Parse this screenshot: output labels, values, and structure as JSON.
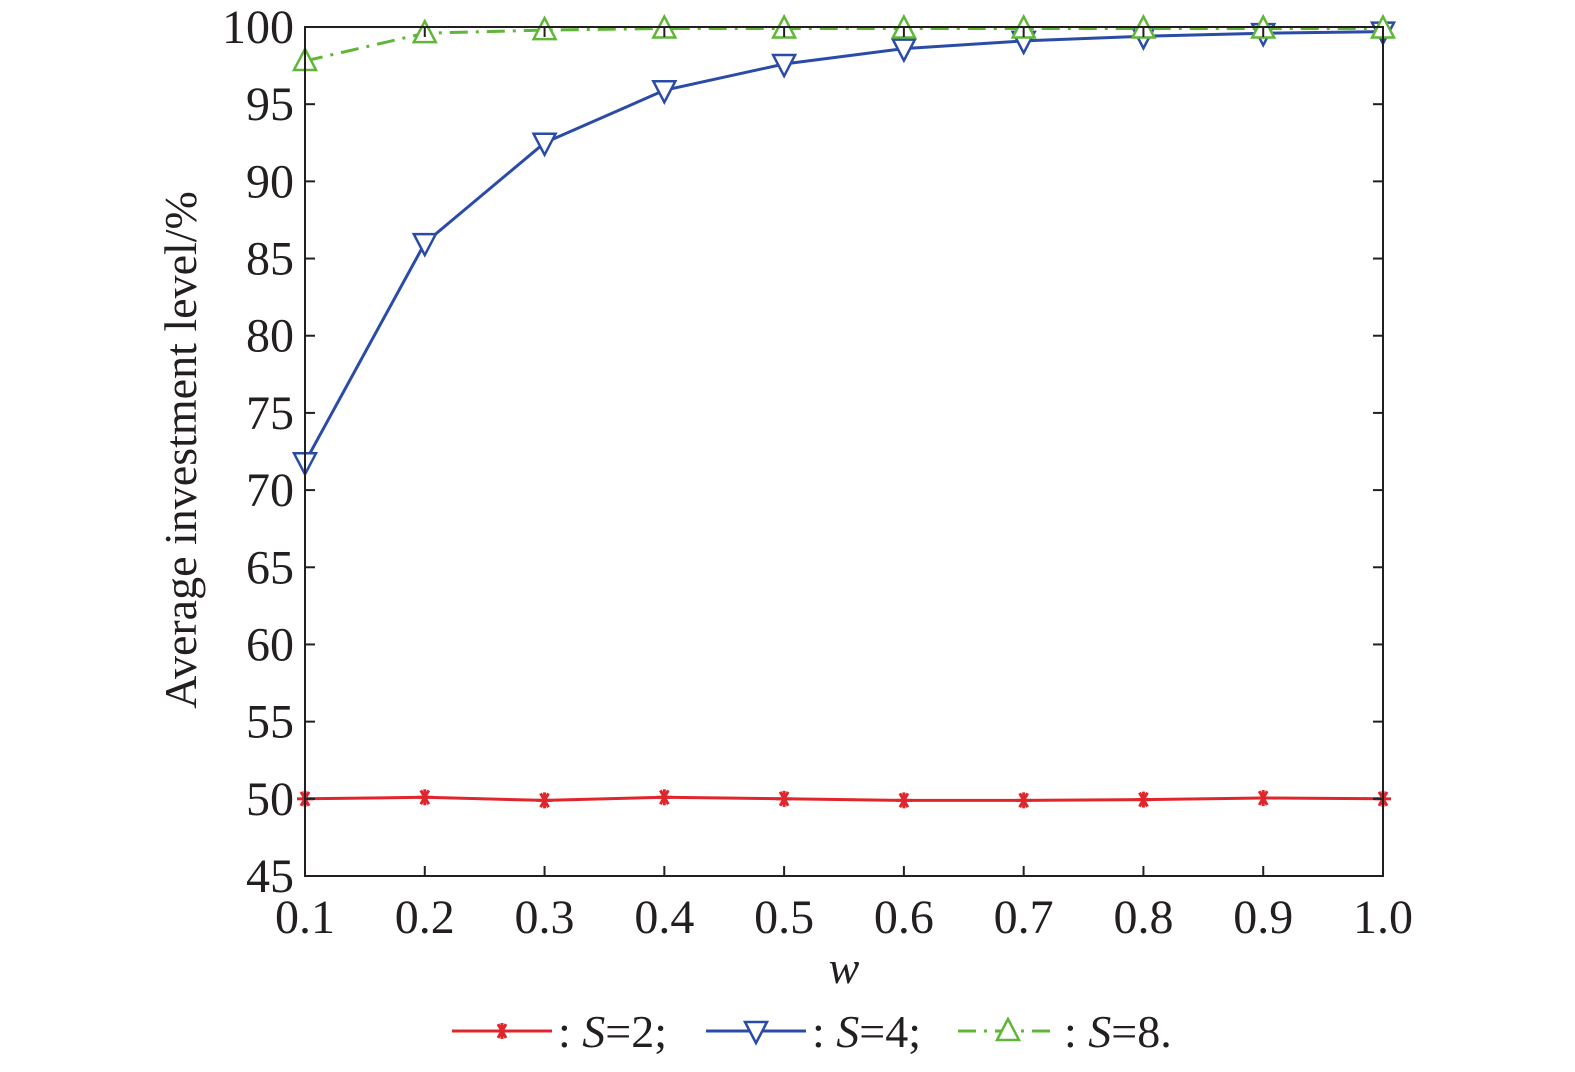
{
  "chart_data": {
    "type": "line",
    "x": [
      "0.1",
      "0.2",
      "0.3",
      "0.4",
      "0.5",
      "0.6",
      "0.7",
      "0.8",
      "0.9",
      "1.0"
    ],
    "xlabel": "w",
    "ylabel": "Average investment level/%",
    "ylim": [
      45,
      100
    ],
    "yticks": [
      "45",
      "50",
      "55",
      "60",
      "65",
      "70",
      "75",
      "80",
      "85",
      "90",
      "95",
      "100"
    ],
    "grid": false,
    "legend_position": "bottom",
    "series": [
      {
        "name": "S=2",
        "legend": {
          "prefix": ": ",
          "var": "S",
          "rest": "=2;"
        },
        "color": "#e0262c",
        "marker": "asterisk",
        "line_style": "solid",
        "values": [
          50.0,
          50.1,
          49.9,
          50.1,
          50.0,
          49.9,
          49.9,
          49.95,
          50.05,
          50.0
        ]
      },
      {
        "name": "S=4",
        "legend": {
          "prefix": ": ",
          "var": "S",
          "rest": "=4;"
        },
        "color": "#2a4ba6",
        "marker": "triangle-down",
        "line_style": "solid",
        "values": [
          71.8,
          86.0,
          92.5,
          95.9,
          97.6,
          98.6,
          99.1,
          99.4,
          99.6,
          99.7
        ]
      },
      {
        "name": "S=8",
        "legend": {
          "prefix": ": ",
          "var": "S",
          "rest": "=8."
        },
        "color": "#5fb637",
        "marker": "triangle-up",
        "line_style": "dash-dot",
        "values": [
          97.8,
          99.6,
          99.8,
          99.9,
          99.9,
          99.9,
          99.9,
          99.9,
          99.9,
          99.9
        ]
      }
    ]
  }
}
